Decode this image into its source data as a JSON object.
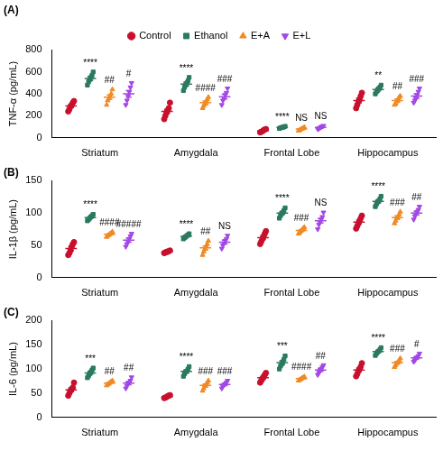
{
  "chart_data": [
    {
      "type": "scatter",
      "title": "(A)",
      "y_label": "TNF-α (pg/mL)",
      "legend": "top",
      "categories": [
        "Striatum",
        "Amygdala",
        "Frontal Lobe",
        "Hippocampus"
      ],
      "ylim": [
        0,
        800
      ],
      "yticks": [
        0,
        200,
        400,
        600,
        800
      ],
      "grid": false,
      "series": [
        {
          "name": "Control",
          "color": "#c8102e",
          "marker": "circle",
          "values": [
            290,
            240,
            65,
            340
          ],
          "errors": [
            15,
            20,
            5,
            22
          ],
          "points": [
            [
              240,
              260,
              285,
              300,
              320,
              335
            ],
            [
              170,
              200,
              230,
              250,
              270,
              320
            ],
            [
              50,
              55,
              60,
              70,
              75,
              80
            ],
            [
              270,
              300,
              330,
              350,
              380,
              410
            ]
          ]
        },
        {
          "name": "Ethanol",
          "color": "#2a7a5f",
          "marker": "square",
          "values": [
            540,
            490,
            95,
            440
          ],
          "errors": [
            18,
            17,
            3,
            12
          ],
          "points": [
            [
              480,
              510,
              530,
              550,
              570,
              600
            ],
            [
              430,
              460,
              480,
              500,
              520,
              550
            ],
            [
              85,
              90,
              95,
              95,
              100,
              105
            ],
            [
              400,
              420,
              430,
              450,
              460,
              480
            ]
          ],
          "annotations": [
            "****",
            "****",
            "****",
            "**"
          ]
        },
        {
          "name": "E+A",
          "color": "#f08a24",
          "marker": "triangle",
          "values": [
            370,
            320,
            80,
            340
          ],
          "errors": [
            20,
            15,
            5,
            13
          ],
          "points": [
            [
              300,
              340,
              360,
              380,
              400,
              440
            ],
            [
              270,
              290,
              310,
              330,
              350,
              370
            ],
            [
              65,
              70,
              78,
              82,
              88,
              97
            ],
            [
              300,
              310,
              330,
              350,
              370,
              380
            ]
          ],
          "annotations": [
            "##",
            "####",
            "NS",
            "##"
          ]
        },
        {
          "name": "E+L",
          "color": "#a347e6",
          "marker": "triangle_down",
          "values": [
            400,
            375,
            95,
            380
          ],
          "errors": [
            30,
            22,
            5,
            20
          ],
          "points": [
            [
              300,
              340,
              380,
              420,
              460,
              500
            ],
            [
              300,
              340,
              360,
              390,
              410,
              450
            ],
            [
              80,
              85,
              92,
              98,
              105,
              110
            ],
            [
              320,
              340,
              360,
              390,
              420,
              450
            ]
          ],
          "annotations": [
            "#",
            "###",
            "NS",
            "###"
          ]
        }
      ]
    },
    {
      "type": "scatter",
      "title": "(B)",
      "y_label": "IL-1β (pg/mL)",
      "categories": [
        "Striatum",
        "Amygdala",
        "Frontal Lobe",
        "Hippocampus"
      ],
      "ylim": [
        0,
        150
      ],
      "yticks": [
        0,
        50,
        100,
        150
      ],
      "grid": false,
      "series": [
        {
          "name": "Control",
          "color": "#c8102e",
          "marker": "circle",
          "values": [
            45,
            40,
            62,
            86
          ],
          "errors": [
            3,
            0.6,
            3,
            3
          ],
          "points": [
            [
              35,
              38,
              42,
              48,
              52,
              55
            ],
            [
              38,
              39,
              40,
              40,
              41,
              42
            ],
            [
              52,
              56,
              60,
              64,
              68,
              72
            ],
            [
              76,
              80,
              84,
              88,
              92,
              96
            ]
          ]
        },
        {
          "name": "Ethanol",
          "color": "#2a7a5f",
          "marker": "square",
          "values": [
            93,
            64,
            100,
            118
          ],
          "errors": [
            1.5,
            1.2,
            2.3,
            2.3
          ],
          "points": [
            [
              88,
              90,
              92,
              94,
              96,
              98
            ],
            [
              60,
              62,
              63,
              65,
              66,
              68
            ],
            [
              92,
              96,
              99,
              101,
              104,
              108
            ],
            [
              110,
              114,
              117,
              119,
              122,
              126
            ]
          ],
          "annotations": [
            "****",
            "****",
            "****",
            "****"
          ]
        },
        {
          "name": "E+A",
          "color": "#f08a24",
          "marker": "triangle",
          "values": [
            67,
            46,
            73,
            93
          ],
          "errors": [
            1.2,
            3,
            1.5,
            2.6
          ],
          "points": [
            [
              63,
              65,
              66,
              68,
              69,
              71
            ],
            [
              35,
              40,
              44,
              48,
              52,
              57
            ],
            [
              68,
              70,
              72,
              74,
              76,
              78
            ],
            [
              84,
              88,
              92,
              94,
              98,
              102
            ]
          ],
          "annotations": [
            "####",
            "##",
            "###",
            "###"
          ]
        },
        {
          "name": "E+L",
          "color": "#a347e6",
          "marker": "triangle_down",
          "values": [
            58,
            55,
            88,
            100
          ],
          "errors": [
            3,
            3,
            3.6,
            2.8
          ],
          "points": [
            [
              48,
              52,
              56,
              60,
              64,
              68
            ],
            [
              45,
              50,
              53,
              57,
              60,
              65
            ],
            [
              75,
              82,
              86,
              90,
              94,
              101
            ],
            [
              90,
              95,
              98,
              102,
              105,
              110
            ]
          ],
          "annotations": [
            "#####",
            "NS",
            "NS",
            "##"
          ]
        }
      ]
    },
    {
      "type": "scatter",
      "title": "(C)",
      "y_label": "IL-6 (pg/mL)",
      "categories": [
        "Striatum",
        "Amygdala",
        "Frontal Lobe",
        "Hippocampus"
      ],
      "ylim": [
        0,
        200
      ],
      "yticks": [
        0,
        50,
        100,
        150,
        200
      ],
      "grid": false,
      "series": [
        {
          "name": "Control",
          "color": "#c8102e",
          "marker": "circle",
          "values": [
            57,
            43,
            82,
            98
          ],
          "errors": [
            4,
            1,
            3,
            4
          ],
          "points": [
            [
              45,
              50,
              55,
              58,
              62,
              72
            ],
            [
              40,
              41,
              42,
              44,
              45,
              46
            ],
            [
              72,
              76,
              80,
              84,
              88,
              92
            ],
            [
              85,
              90,
              96,
              100,
              105,
              112
            ]
          ]
        },
        {
          "name": "Ethanol",
          "color": "#2a7a5f",
          "marker": "square",
          "values": [
            92,
            95,
            113,
            136
          ],
          "errors": [
            3,
            3,
            4,
            2.3
          ],
          "points": [
            [
              82,
              86,
              90,
              94,
              98,
              102
            ],
            [
              85,
              90,
              94,
              96,
              100,
              105
            ],
            [
              100,
              106,
              110,
              115,
              120,
              127
            ],
            [
              128,
              132,
              135,
              137,
              140,
              144
            ]
          ],
          "annotations": [
            "***",
            "****",
            "***",
            "****"
          ]
        },
        {
          "name": "E+A",
          "color": "#f08a24",
          "marker": "triangle",
          "values": [
            71,
            66,
            80,
            113
          ],
          "errors": [
            1.5,
            3.2,
            1.2,
            2.7
          ],
          "points": [
            [
              66,
              68,
              70,
              72,
              74,
              76
            ],
            [
              55,
              60,
              65,
              68,
              72,
              76
            ],
            [
              76,
              78,
              79,
              81,
              82,
              84
            ],
            [
              104,
              108,
              112,
              114,
              118,
              122
            ]
          ],
          "annotations": [
            "##",
            "###",
            "####",
            "###"
          ]
        },
        {
          "name": "E+L",
          "color": "#a347e6",
          "marker": "triangle_down",
          "values": [
            71,
            68,
            98,
            123
          ],
          "errors": [
            3.3,
            2.3,
            3,
            2.5
          ],
          "points": [
            [
              60,
              65,
              70,
              72,
              76,
              83
            ],
            [
              60,
              64,
              67,
              69,
              72,
              76
            ],
            [
              88,
              92,
              96,
              100,
              104,
              108
            ],
            [
              115,
              118,
              122,
              124,
              127,
              132
            ]
          ],
          "annotations": [
            "##",
            "###",
            "##",
            "#"
          ]
        }
      ]
    }
  ]
}
